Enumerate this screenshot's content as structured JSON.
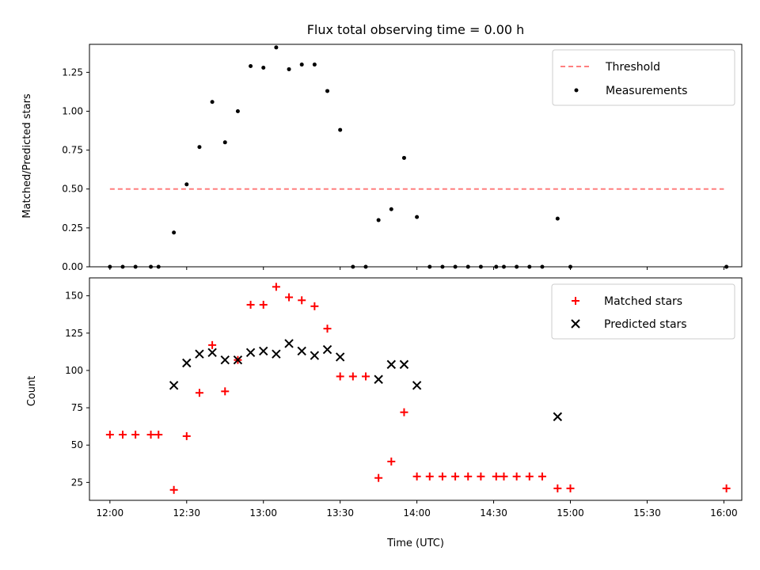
{
  "colors": {
    "threshold": "#ff7f7f",
    "measurement": "#000000",
    "matched": "#ff0000",
    "predicted": "#000000"
  },
  "chart_data": [
    {
      "type": "scatter",
      "title": "Flux total observing time = 0.00 h",
      "ylabel": "Matched/Predicted stars",
      "xlim": [
        "11:52",
        "16:07"
      ],
      "ylim": [
        0,
        1.43
      ],
      "yticks": [
        0,
        0.25,
        0.5,
        0.75,
        1.0,
        1.25
      ],
      "ytick_labels": [
        "0.00",
        "0.25",
        "0.50",
        "0.75",
        "1.00",
        "1.25"
      ],
      "legend_position": "top-right",
      "threshold": {
        "name": "Threshold",
        "x": [
          "12:00",
          "16:00"
        ],
        "value": 0.5
      },
      "series": [
        {
          "name": "Measurements",
          "x": [
            "12:00",
            "12:05",
            "12:10",
            "12:16",
            "12:19",
            "12:25",
            "12:30",
            "12:35",
            "12:40",
            "12:45",
            "12:50",
            "12:55",
            "13:00",
            "13:05",
            "13:10",
            "13:15",
            "13:20",
            "13:25",
            "13:30",
            "13:35",
            "13:40",
            "13:45",
            "13:50",
            "13:55",
            "14:00",
            "14:05",
            "14:10",
            "14:15",
            "14:20",
            "14:25",
            "14:31",
            "14:34",
            "14:39",
            "14:44",
            "14:49",
            "14:55",
            "15:00",
            "16:01"
          ],
          "values": [
            0,
            0,
            0,
            0,
            0,
            0.22,
            0.53,
            0.77,
            1.06,
            0.8,
            1.0,
            1.29,
            1.28,
            1.41,
            1.27,
            1.3,
            1.3,
            1.13,
            0.88,
            0,
            0,
            0.3,
            0.37,
            0.7,
            0.32,
            0,
            0,
            0,
            0,
            0,
            0,
            0,
            0,
            0,
            0,
            0.31,
            0,
            0
          ]
        }
      ]
    },
    {
      "type": "scatter",
      "xlabel": "Time (UTC)",
      "ylabel": "Count",
      "xlim": [
        "11:52",
        "16:07"
      ],
      "ylim": [
        13,
        162
      ],
      "yticks": [
        25,
        50,
        75,
        100,
        125,
        150
      ],
      "xticks": [
        "12:00",
        "12:30",
        "13:00",
        "13:30",
        "14:00",
        "14:30",
        "15:00",
        "15:30",
        "16:00"
      ],
      "legend_position": "top-right",
      "series": [
        {
          "name": "Matched stars",
          "x": [
            "12:00",
            "12:05",
            "12:10",
            "12:16",
            "12:19",
            "12:25",
            "12:30",
            "12:35",
            "12:40",
            "12:45",
            "12:50",
            "12:55",
            "13:00",
            "13:05",
            "13:10",
            "13:15",
            "13:20",
            "13:25",
            "13:30",
            "13:35",
            "13:40",
            "13:45",
            "13:50",
            "13:55",
            "14:00",
            "14:05",
            "14:10",
            "14:15",
            "14:20",
            "14:25",
            "14:31",
            "14:34",
            "14:39",
            "14:44",
            "14:49",
            "14:55",
            "15:00",
            "16:01"
          ],
          "values": [
            57,
            57,
            57,
            57,
            57,
            20,
            56,
            85,
            117,
            86,
            107,
            144,
            144,
            156,
            149,
            147,
            143,
            128,
            96,
            96,
            96,
            28,
            39,
            72,
            29,
            29,
            29,
            29,
            29,
            29,
            29,
            29,
            29,
            29,
            29,
            21,
            21,
            21
          ]
        },
        {
          "name": "Predicted stars",
          "x": [
            "12:25",
            "12:30",
            "12:35",
            "12:40",
            "12:45",
            "12:50",
            "12:55",
            "13:00",
            "13:05",
            "13:10",
            "13:15",
            "13:20",
            "13:25",
            "13:30",
            "13:45",
            "13:50",
            "13:55",
            "14:00",
            "14:55"
          ],
          "values": [
            90,
            105,
            111,
            112,
            107,
            107,
            112,
            113,
            111,
            118,
            113,
            110,
            114,
            109,
            94,
            104,
            104,
            90,
            69
          ]
        }
      ]
    }
  ]
}
